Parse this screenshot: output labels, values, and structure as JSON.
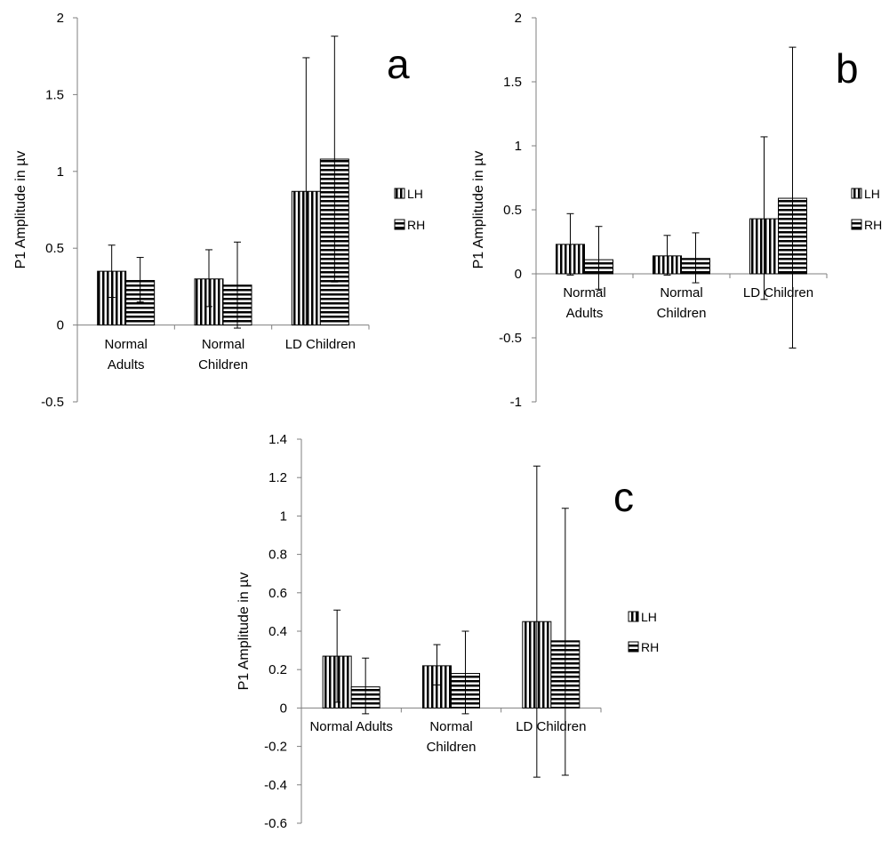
{
  "chart_data": [
    {
      "type": "bar",
      "panel_label": "a",
      "ylabel": "P1 Amplitude in µv",
      "categories": [
        [
          "Normal",
          "Adults"
        ],
        [
          "Normal",
          "Children"
        ],
        [
          "LD Children"
        ]
      ],
      "ylim": [
        -0.5,
        2
      ],
      "yticks": [
        "-0.5",
        "0",
        "0.5",
        "1",
        "1.5",
        "2"
      ],
      "series": [
        {
          "name": "LH",
          "pattern": "vertical",
          "values": [
            0.35,
            0.3,
            0.87
          ],
          "err_low": [
            0.18,
            0.12,
            0.0
          ],
          "err_high": [
            0.52,
            0.49,
            1.74
          ]
        },
        {
          "name": "RH",
          "pattern": "horizontal",
          "values": [
            0.29,
            0.26,
            1.08
          ],
          "err_low": [
            0.15,
            -0.02,
            0.28
          ],
          "err_high": [
            0.44,
            0.54,
            1.88
          ]
        }
      ],
      "legend": "right",
      "grid": false
    },
    {
      "type": "bar",
      "panel_label": "b",
      "ylabel": "P1 Amplitude in µv",
      "categories": [
        [
          "Normal",
          "Adults"
        ],
        [
          "Normal",
          "Children"
        ],
        [
          "LD Children"
        ]
      ],
      "ylim": [
        -1,
        2
      ],
      "yticks": [
        "-1",
        "-0.5",
        "0",
        "0.5",
        "1",
        "1.5",
        "2"
      ],
      "series": [
        {
          "name": "LH",
          "pattern": "vertical",
          "values": [
            0.23,
            0.14,
            0.43
          ],
          "err_low": [
            -0.01,
            -0.01,
            -0.2
          ],
          "err_high": [
            0.47,
            0.3,
            1.07
          ]
        },
        {
          "name": "RH",
          "pattern": "horizontal",
          "values": [
            0.11,
            0.12,
            0.59
          ],
          "err_low": [
            -0.12,
            -0.07,
            -0.58
          ],
          "err_high": [
            0.37,
            0.32,
            1.77
          ]
        }
      ],
      "legend": "right",
      "grid": false
    },
    {
      "type": "bar",
      "panel_label": "c",
      "ylabel": "P1 Amplitude in µv",
      "categories": [
        [
          "Normal Adults"
        ],
        [
          "Normal",
          "Children"
        ],
        [
          "LD Children"
        ]
      ],
      "ylim": [
        -0.6,
        1.4
      ],
      "yticks": [
        "-0.6",
        "-0.4",
        "-0.2",
        "0",
        "0.2",
        "0.4",
        "0.6",
        "0.8",
        "1",
        "1.2",
        "1.4"
      ],
      "series": [
        {
          "name": "LH",
          "pattern": "vertical",
          "values": [
            0.27,
            0.22,
            0.45
          ],
          "err_low": [
            0.03,
            0.12,
            -0.36
          ],
          "err_high": [
            0.51,
            0.33,
            1.26
          ]
        },
        {
          "name": "RH",
          "pattern": "horizontal",
          "values": [
            0.11,
            0.18,
            0.35
          ],
          "err_low": [
            -0.03,
            -0.03,
            -0.35
          ],
          "err_high": [
            0.26,
            0.4,
            1.04
          ]
        }
      ],
      "legend": "right",
      "grid": false
    }
  ]
}
